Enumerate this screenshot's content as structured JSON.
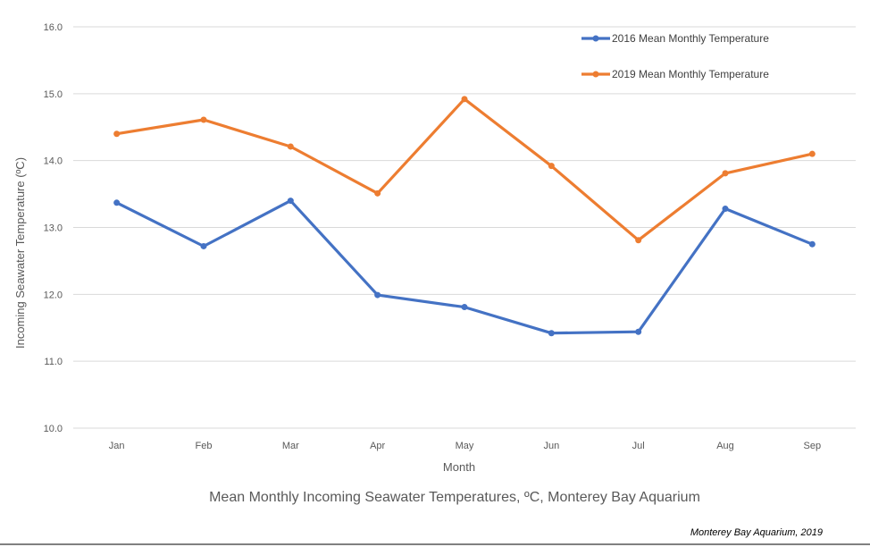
{
  "chart_data": {
    "type": "line",
    "title": "Mean Monthly Incoming Seawater Temperatures, ºC, Monterey Bay Aquarium",
    "xlabel": "Month",
    "ylabel": "Incoming Seawater Temperature (ºC)",
    "categories": [
      "Jan",
      "Feb",
      "Mar",
      "Apr",
      "May",
      "Jun",
      "Jul",
      "Aug",
      "Sep"
    ],
    "ylim": [
      10.0,
      16.0
    ],
    "yticks": [
      "10.0",
      "11.0",
      "12.0",
      "13.0",
      "14.0",
      "15.0",
      "16.0"
    ],
    "grid": true,
    "legend_position": "top-right",
    "series": [
      {
        "name": "2016 Mean Monthly Temperature",
        "color": "#4472c4",
        "values": [
          13.37,
          12.72,
          13.4,
          11.99,
          11.81,
          11.42,
          11.44,
          13.28,
          12.75
        ]
      },
      {
        "name": "2019 Mean Monthly Temperature",
        "color": "#ed7d31",
        "values": [
          14.4,
          14.61,
          14.21,
          13.51,
          14.92,
          13.92,
          12.81,
          13.81,
          14.1
        ]
      }
    ],
    "credit": "Monterey Bay Aquarium, 2019"
  }
}
